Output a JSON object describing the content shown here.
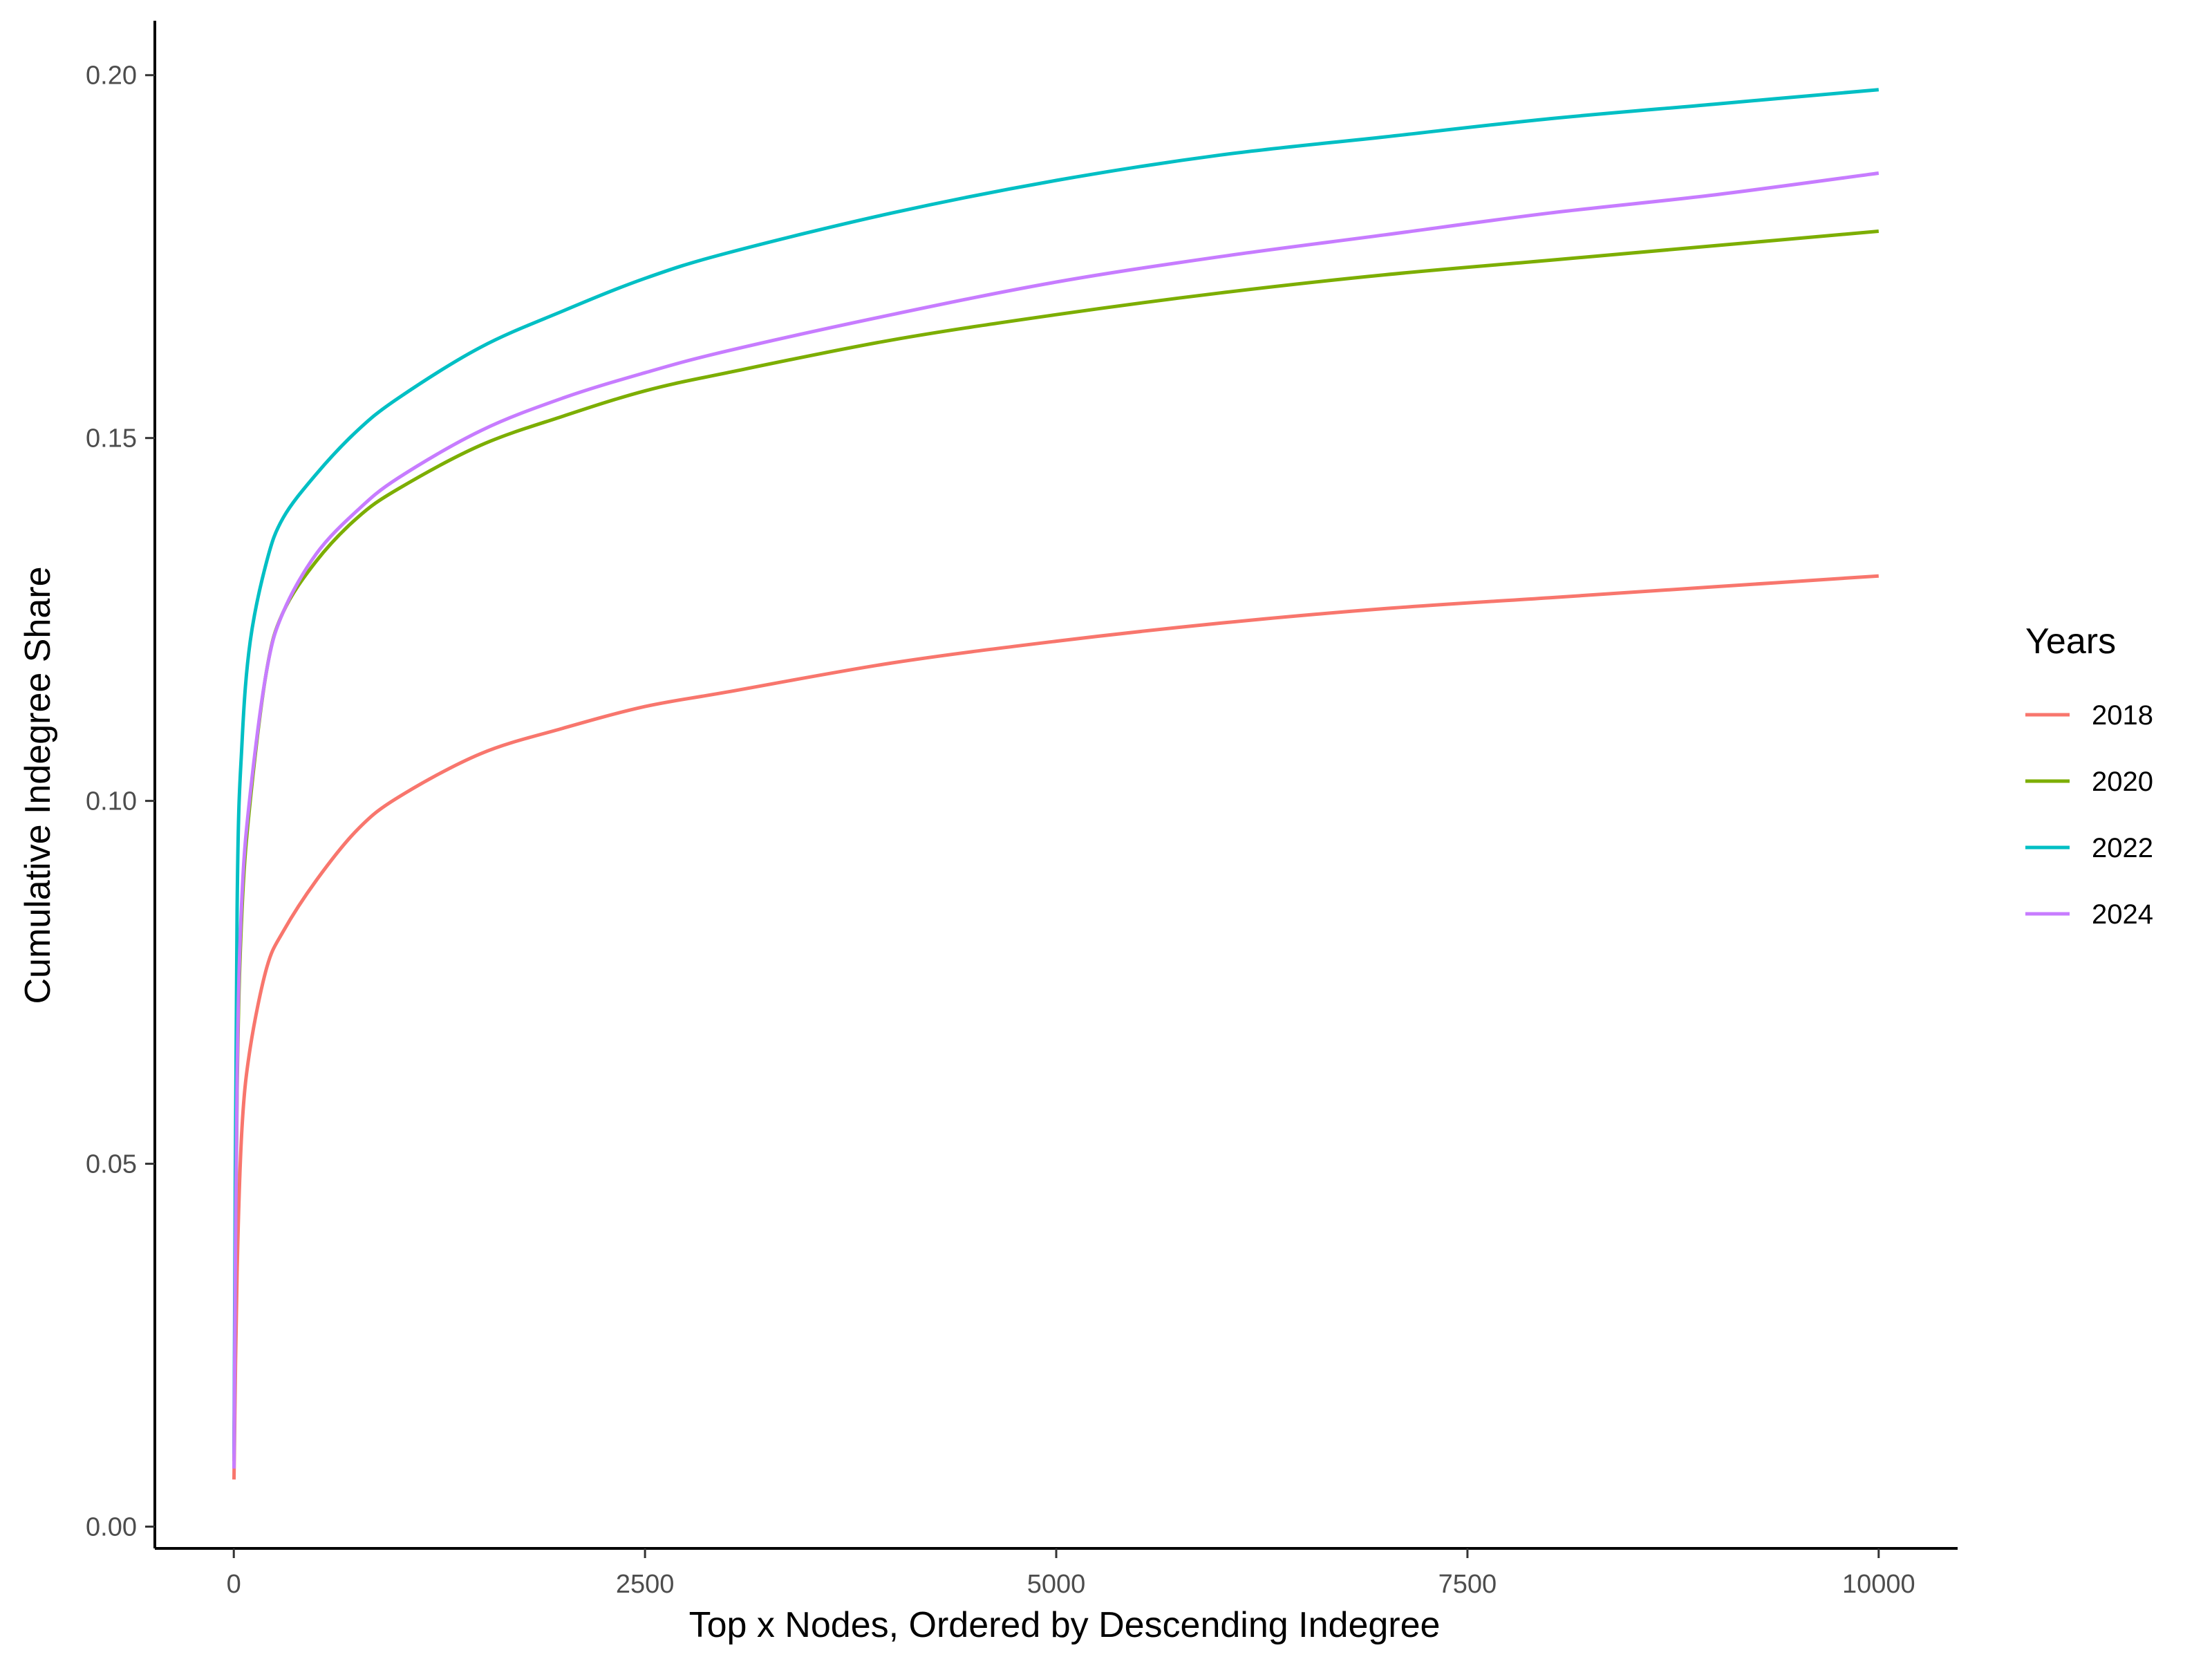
{
  "chart_data": {
    "type": "line",
    "title": "",
    "xlabel": "Top x Nodes, Ordered by Descending Indegree",
    "ylabel": "Cumulative Indegree Share",
    "xlim": [
      -480,
      10480
    ],
    "ylim": [
      -0.003,
      0.2075
    ],
    "x_ticks": [
      0,
      2500,
      5000,
      7500,
      10000
    ],
    "x_tick_labels": [
      "0",
      "2500",
      "5000",
      "7500",
      "10000"
    ],
    "y_ticks": [
      0.0,
      0.05,
      0.1,
      0.15,
      0.2
    ],
    "y_tick_labels": [
      "0.00",
      "0.05",
      "0.10",
      "0.15",
      "0.20"
    ],
    "grid": false,
    "legend": {
      "title": "Years",
      "position": "right"
    },
    "x": [
      1,
      20,
      50,
      100,
      200,
      300,
      500,
      750,
      1000,
      1500,
      2000,
      2500,
      3000,
      4000,
      5000,
      6000,
      7000,
      8000,
      9000,
      10000
    ],
    "series": [
      {
        "name": "2018",
        "color": "#F8766D",
        "values": [
          0.0065,
          0.035,
          0.055,
          0.066,
          0.077,
          0.082,
          0.089,
          0.096,
          0.1005,
          0.1065,
          0.11,
          0.113,
          0.115,
          0.119,
          0.122,
          0.1245,
          0.1265,
          0.128,
          0.1295,
          0.131
        ]
      },
      {
        "name": "2020",
        "color": "#7CAE00",
        "values": [
          0.009,
          0.06,
          0.085,
          0.1,
          0.118,
          0.126,
          0.133,
          0.139,
          0.143,
          0.149,
          0.153,
          0.1565,
          0.159,
          0.1635,
          0.167,
          0.17,
          0.1725,
          0.1745,
          0.1765,
          0.1785
        ]
      },
      {
        "name": "2022",
        "color": "#00BFC4",
        "values": [
          0.01,
          0.085,
          0.108,
          0.122,
          0.133,
          0.139,
          0.145,
          0.151,
          0.1555,
          0.1625,
          0.1675,
          0.172,
          0.1755,
          0.181,
          0.1855,
          0.189,
          0.1915,
          0.194,
          0.196,
          0.198
        ]
      },
      {
        "name": "2024",
        "color": "#C77CFF",
        "values": [
          0.008,
          0.062,
          0.087,
          0.101,
          0.118,
          0.126,
          0.134,
          0.14,
          0.1445,
          0.151,
          0.1555,
          0.159,
          0.162,
          0.167,
          0.1715,
          0.175,
          0.178,
          0.181,
          0.1835,
          0.1865
        ]
      }
    ]
  }
}
